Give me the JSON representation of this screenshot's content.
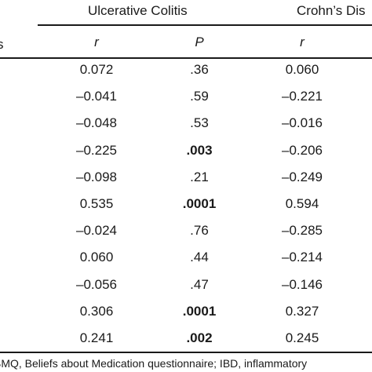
{
  "header": {
    "group1": "Ulcerative Colitis",
    "group2": "Crohn’s Dis",
    "stub": "s",
    "col_r1": "r",
    "col_p1": "P",
    "col_r2": "r"
  },
  "rows": [
    {
      "r_uc": "0.072",
      "p_uc": ".36",
      "p_bold": false,
      "r_cd": "0.060"
    },
    {
      "r_uc": "–0.041",
      "p_uc": ".59",
      "p_bold": false,
      "r_cd": "–0.221"
    },
    {
      "r_uc": "–0.048",
      "p_uc": ".53",
      "p_bold": false,
      "r_cd": "–0.016"
    },
    {
      "r_uc": "–0.225",
      "p_uc": ".003",
      "p_bold": true,
      "r_cd": "–0.206"
    },
    {
      "r_uc": "–0.098",
      "p_uc": ".21",
      "p_bold": false,
      "r_cd": "–0.249"
    },
    {
      "r_uc": "0.535",
      "p_uc": ".0001",
      "p_bold": true,
      "r_cd": "0.594"
    },
    {
      "r_uc": "–0.024",
      "p_uc": ".76",
      "p_bold": false,
      "r_cd": "–0.285"
    },
    {
      "r_uc": "0.060",
      "p_uc": ".44",
      "p_bold": false,
      "r_cd": "–0.214"
    },
    {
      "r_uc": "–0.056",
      "p_uc": ".47",
      "p_bold": false,
      "r_cd": "–0.146"
    },
    {
      "r_uc": "0.306",
      "p_uc": ".0001",
      "p_bold": true,
      "r_cd": "0.327"
    },
    {
      "r_uc": "0.241",
      "p_uc": ".002",
      "p_bold": true,
      "r_cd": "0.245"
    }
  ],
  "footnote": "BMQ, Beliefs about Medication questionnaire; IBD, inflammatory"
}
